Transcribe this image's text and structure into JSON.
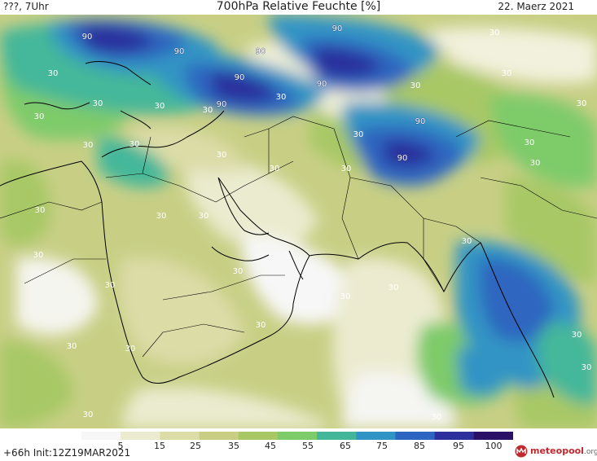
{
  "header": {
    "left": "???, 7Uhr",
    "title": "700hPa Relative Feuchte [%]",
    "date": "22. Maerz 2021"
  },
  "footer": {
    "init": "+66h Init:12Z19MAR2021",
    "logo": "meteopool",
    "logo_suffix": ".org"
  },
  "colorbar": {
    "labels": [
      "5",
      "15",
      "25",
      "35",
      "45",
      "55",
      "65",
      "75",
      "85",
      "95",
      "100"
    ],
    "colors": [
      "#f7f7f7",
      "#ebebcf",
      "#dcdca7",
      "#c8cf85",
      "#a8c866",
      "#7ecb6a",
      "#44b79a",
      "#3094c4",
      "#2d66c0",
      "#2c2f9c",
      "#2a1066"
    ]
  },
  "contour_labels": [
    {
      "text": "90"
    },
    {
      "text": "90"
    },
    {
      "text": "90"
    },
    {
      "text": "90"
    },
    {
      "text": "90"
    },
    {
      "text": "90"
    },
    {
      "text": "90"
    },
    {
      "text": "90"
    },
    {
      "text": "90"
    },
    {
      "text": "30"
    },
    {
      "text": "30"
    },
    {
      "text": "30"
    },
    {
      "text": "30"
    },
    {
      "text": "30"
    },
    {
      "text": "30"
    },
    {
      "text": "30"
    },
    {
      "text": "30"
    },
    {
      "text": "30"
    },
    {
      "text": "30"
    },
    {
      "text": "30"
    },
    {
      "text": "30"
    },
    {
      "text": "30"
    },
    {
      "text": "30"
    },
    {
      "text": "30"
    },
    {
      "text": "30"
    },
    {
      "text": "30"
    },
    {
      "text": "30"
    },
    {
      "text": "30"
    },
    {
      "text": "30"
    },
    {
      "text": "30"
    },
    {
      "text": "30"
    },
    {
      "text": "30"
    },
    {
      "text": "30"
    },
    {
      "text": "30"
    },
    {
      "text": "30"
    },
    {
      "text": "30"
    },
    {
      "text": "30"
    },
    {
      "text": "30"
    },
    {
      "text": "30"
    },
    {
      "text": "30"
    },
    {
      "text": "30"
    },
    {
      "text": "30"
    },
    {
      "text": "30"
    }
  ]
}
